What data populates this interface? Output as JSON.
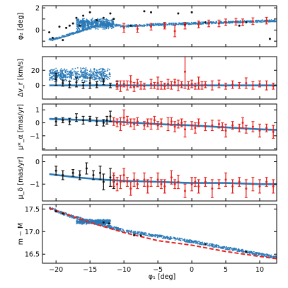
{
  "chart_data": {
    "type": "scatter",
    "x_axis": {
      "label": "φ₁ [deg]",
      "lim": [
        -22,
        12.5
      ],
      "ticks": [
        -20,
        -15,
        -10,
        -5,
        0,
        5,
        10
      ],
      "tick_labels": [
        "−20",
        "−15",
        "−10",
        "−5",
        "0",
        "5",
        "10"
      ]
    },
    "colors": {
      "model": "#2a7ab8",
      "black_members": "#111111",
      "red_members": "#e8211c",
      "dashed_line": "#e8211c"
    },
    "panels": [
      {
        "ylabel": "φ₂ [deg]",
        "ylim": [
          -1.5,
          2.2
        ],
        "yticks": [
          -1,
          0,
          1,
          2
        ],
        "ytick_labels": [
          "",
          "0",
          "",
          "2"
        ],
        "model_band": [
          [
            -20.5,
            -0.85
          ],
          [
            -18,
            -0.4
          ],
          [
            -15,
            0.2
          ],
          [
            -13,
            0.55
          ],
          [
            -10,
            0.35
          ],
          [
            -5,
            0.5
          ],
          [
            0,
            0.6
          ],
          [
            5,
            0.7
          ],
          [
            10,
            0.8
          ],
          [
            12.5,
            0.85
          ]
        ],
        "model_blob": {
          "x_range": [
            -17,
            -11.5
          ],
          "y_center": 0.55,
          "y_half": 0.55
        },
        "black_points": [
          [
            -21,
            -0.2
          ],
          [
            -20.5,
            -0.7
          ],
          [
            -19.5,
            0.3
          ],
          [
            -19,
            -0.9
          ],
          [
            -18.5,
            0.2
          ],
          [
            -18,
            0.4
          ],
          [
            -17.5,
            0.6
          ],
          [
            -17,
            1.1
          ],
          [
            -16.5,
            0.4
          ],
          [
            -16,
            1.3
          ],
          [
            -15,
            1.6
          ],
          [
            -14,
            0.9
          ],
          [
            -13,
            1.1
          ],
          [
            -12,
            1.5
          ],
          [
            -11.5,
            1.0
          ],
          [
            -9,
            0.4
          ],
          [
            -7,
            1.7
          ],
          [
            -6,
            1.6
          ],
          [
            -4,
            0.3
          ],
          [
            -2,
            1.5
          ],
          [
            -1,
            0.5
          ],
          [
            0,
            1.6
          ],
          [
            2,
            0.7
          ],
          [
            4,
            0.6
          ],
          [
            7,
            0.4
          ],
          [
            8,
            0.7
          ],
          [
            11.5,
            -0.8
          ]
        ],
        "red_points": [
          [
            -10,
            0.2,
            0.4
          ],
          [
            -8,
            0.1,
            0.3
          ],
          [
            -6,
            0.3,
            0.3
          ],
          [
            -4,
            0.4,
            0.3
          ],
          [
            -2.5,
            -0.1,
            0.5
          ],
          [
            -1,
            0.4,
            0.3
          ],
          [
            1,
            0.5,
            0.3
          ],
          [
            2.5,
            0.6,
            0.3
          ],
          [
            4,
            0.6,
            0.3
          ],
          [
            5,
            0.7,
            0.3
          ],
          [
            6.5,
            0.75,
            0.3
          ],
          [
            7.5,
            0.7,
            0.3
          ],
          [
            9,
            0.8,
            0.3
          ],
          [
            11,
            0.85,
            0.3
          ]
        ]
      },
      {
        "ylabel": "Δv_r [km/s]",
        "ylim": [
          -18,
          38
        ],
        "yticks": [
          0,
          20
        ],
        "ytick_labels": [
          "0",
          "20"
        ],
        "model_line": [
          [
            -21,
            0
          ],
          [
            -15,
            0
          ],
          [
            -10,
            0
          ],
          [
            0,
            0
          ],
          [
            10,
            0
          ],
          [
            12.5,
            0
          ]
        ],
        "model_blob": {
          "x_range": [
            -21,
            -12
          ],
          "y_center": 14,
          "y_half": 10
        },
        "black_points": [
          [
            -20,
            8,
            8
          ],
          [
            -19,
            3,
            4
          ],
          [
            -18,
            1,
            4
          ],
          [
            -17,
            4,
            6
          ],
          [
            -16,
            0,
            4
          ],
          [
            -15,
            3,
            7
          ],
          [
            -14,
            1,
            4
          ],
          [
            -13,
            5,
            4
          ],
          [
            -12,
            0,
            3
          ],
          [
            -11,
            2,
            4
          ]
        ],
        "red_points": [
          [
            -11,
            0,
            5
          ],
          [
            -10.5,
            -1,
            7
          ],
          [
            -10,
            2,
            4
          ],
          [
            -9.5,
            0,
            6
          ],
          [
            -9,
            5,
            8
          ],
          [
            -8.5,
            -2,
            6
          ],
          [
            -8,
            3,
            5
          ],
          [
            -7.5,
            0,
            5
          ],
          [
            -7,
            -1,
            4
          ],
          [
            -6,
            2,
            6
          ],
          [
            -5.5,
            0,
            4
          ],
          [
            -5,
            3,
            8
          ],
          [
            -4.5,
            0,
            5
          ],
          [
            -4,
            -1,
            4
          ],
          [
            -3.5,
            2,
            6
          ],
          [
            -3,
            0,
            5
          ],
          [
            -2.5,
            4,
            4
          ],
          [
            -2,
            0,
            7
          ],
          [
            -1.5,
            1,
            4
          ],
          [
            -1,
            18,
            22
          ],
          [
            -0.5,
            0,
            5
          ],
          [
            0,
            2,
            5
          ],
          [
            0.5,
            -1,
            4
          ],
          [
            1,
            3,
            8
          ],
          [
            1.5,
            0,
            5
          ],
          [
            2,
            1,
            4
          ],
          [
            3,
            0,
            6
          ],
          [
            4,
            2,
            5
          ],
          [
            5,
            -1,
            4
          ],
          [
            6,
            1,
            5
          ],
          [
            7,
            0,
            4
          ],
          [
            8,
            3,
            7
          ],
          [
            9,
            0,
            5
          ],
          [
            10,
            2,
            4
          ],
          [
            11,
            0,
            6
          ],
          [
            12,
            -1,
            4
          ]
        ]
      },
      {
        "ylabel": "μ*_α [mas/yr]",
        "ylim": [
          -2.1,
          1.45
        ],
        "yticks": [
          -2,
          -1,
          0,
          1
        ],
        "ytick_labels": [
          "",
          "−1",
          "0",
          "1"
        ],
        "model_line": [
          [
            -21,
            0.3
          ],
          [
            -15,
            0.2
          ],
          [
            -10,
            0.05
          ],
          [
            -5,
            -0.1
          ],
          [
            0,
            -0.2
          ],
          [
            5,
            -0.35
          ],
          [
            10,
            -0.5
          ],
          [
            12.5,
            -0.55
          ]
        ],
        "black_points": [
          [
            -20,
            0.1,
            0.3
          ],
          [
            -19,
            0.2,
            0.2
          ],
          [
            -18,
            0.1,
            0.25
          ],
          [
            -17,
            0.4,
            0.3
          ],
          [
            -16,
            0.2,
            0.3
          ],
          [
            -15,
            0.3,
            0.2
          ],
          [
            -14,
            0.1,
            0.3
          ],
          [
            -13,
            0.0,
            0.25
          ],
          [
            -12.5,
            0.2,
            0.3
          ],
          [
            -12,
            0.5,
            0.4
          ]
        ],
        "red_points": [
          [
            -11.5,
            0.1,
            0.3
          ],
          [
            -11,
            0.0,
            0.3
          ],
          [
            -10.5,
            -0.1,
            0.5
          ],
          [
            -10,
            0.4,
            0.6
          ],
          [
            -9.5,
            0.2,
            0.3
          ],
          [
            -9,
            0.0,
            0.3
          ],
          [
            -8.5,
            -0.1,
            0.4
          ],
          [
            -8,
            0.1,
            0.3
          ],
          [
            -7,
            -0.2,
            0.3
          ],
          [
            -6.5,
            0.0,
            0.3
          ],
          [
            -6,
            -0.1,
            0.4
          ],
          [
            -5.5,
            0.2,
            0.3
          ],
          [
            -5,
            -0.2,
            0.3
          ],
          [
            -4.5,
            0.0,
            0.3
          ],
          [
            -3.5,
            -0.1,
            0.5
          ],
          [
            -3,
            0.1,
            0.3
          ],
          [
            -2.5,
            -0.3,
            0.4
          ],
          [
            -2,
            -0.1,
            0.3
          ],
          [
            -1.5,
            0.0,
            0.3
          ],
          [
            -1,
            -0.5,
            0.6
          ],
          [
            0,
            -0.2,
            0.3
          ],
          [
            0.5,
            -0.4,
            0.4
          ],
          [
            1,
            0.0,
            0.3
          ],
          [
            2,
            -0.3,
            0.3
          ],
          [
            3,
            -0.2,
            0.4
          ],
          [
            4,
            -0.1,
            0.3
          ],
          [
            4.5,
            -0.3,
            0.3
          ],
          [
            5,
            -0.6,
            0.5
          ],
          [
            6,
            -0.2,
            0.3
          ],
          [
            7,
            -0.4,
            0.3
          ],
          [
            7.5,
            0.0,
            0.4
          ],
          [
            8,
            -0.5,
            0.3
          ],
          [
            9,
            -0.3,
            0.4
          ],
          [
            10,
            -0.6,
            0.5
          ],
          [
            11,
            -0.4,
            0.3
          ],
          [
            12,
            -0.7,
            0.5
          ]
        ]
      },
      {
        "ylabel": "μ_δ [mas/yr]",
        "ylim": [
          -1.75,
          0.3
        ],
        "yticks": [
          -1,
          0
        ],
        "ytick_labels": [
          "−1",
          "0"
        ],
        "model_line": [
          [
            -21,
            -0.55
          ],
          [
            -17,
            -0.7
          ],
          [
            -13,
            -0.8
          ],
          [
            -10,
            -0.85
          ],
          [
            -5,
            -0.9
          ],
          [
            0,
            -0.95
          ],
          [
            5,
            -0.95
          ],
          [
            10,
            -1.0
          ],
          [
            12.5,
            -1.0
          ]
        ],
        "black_points": [
          [
            -20,
            -0.4,
            0.2
          ],
          [
            -19,
            -0.6,
            0.2
          ],
          [
            -17.5,
            -0.5,
            0.15
          ],
          [
            -16.5,
            -0.6,
            0.2
          ],
          [
            -15.5,
            -0.3,
            0.25
          ],
          [
            -14.5,
            -0.6,
            0.2
          ],
          [
            -13.5,
            -0.5,
            0.3
          ],
          [
            -13,
            -0.9,
            0.35
          ],
          [
            -12,
            -0.7,
            0.4
          ],
          [
            -11.5,
            -0.9,
            0.3
          ]
        ],
        "red_points": [
          [
            -11.5,
            -0.8,
            0.3
          ],
          [
            -11,
            -1.0,
            0.3
          ],
          [
            -10.5,
            -0.9,
            0.3
          ],
          [
            -10,
            -0.6,
            0.3
          ],
          [
            -9.5,
            -0.9,
            0.2
          ],
          [
            -9,
            -1.2,
            0.3
          ],
          [
            -8.5,
            -0.8,
            0.3
          ],
          [
            -8,
            -1.0,
            0.2
          ],
          [
            -7,
            -0.8,
            0.3
          ],
          [
            -6.5,
            -1.1,
            0.3
          ],
          [
            -6,
            -0.9,
            0.2
          ],
          [
            -5,
            -0.8,
            0.3
          ],
          [
            -4.5,
            -1.0,
            0.2
          ],
          [
            -4,
            -1.1,
            0.3
          ],
          [
            -3,
            -0.7,
            0.3
          ],
          [
            -2.5,
            -1.0,
            0.2
          ],
          [
            -2,
            -0.9,
            0.3
          ],
          [
            -1,
            -1.3,
            0.3
          ],
          [
            0,
            -1.0,
            0.3
          ],
          [
            0.5,
            -0.9,
            0.2
          ],
          [
            1,
            -1.1,
            0.3
          ],
          [
            2,
            -0.9,
            0.2
          ],
          [
            3,
            -1.2,
            0.4
          ],
          [
            4,
            -1.0,
            0.2
          ],
          [
            5,
            -0.8,
            0.3
          ],
          [
            6,
            -1.1,
            0.3
          ],
          [
            7,
            -0.9,
            0.2
          ],
          [
            8,
            -1.2,
            0.4
          ],
          [
            9,
            -1.0,
            0.3
          ],
          [
            10,
            -1.1,
            0.3
          ],
          [
            11,
            -0.9,
            0.2
          ],
          [
            12,
            -1.1,
            0.3
          ]
        ]
      },
      {
        "ylabel": "m − M",
        "ylim": [
          16.3,
          17.6
        ],
        "yticks": [
          16.5,
          17.0,
          17.5
        ],
        "ytick_labels": [
          "16.5",
          "17.0",
          "17.5"
        ],
        "model_band": [
          [
            -21,
            17.52
          ],
          [
            -18,
            17.35
          ],
          [
            -15,
            17.22
          ],
          [
            -10,
            17.02
          ],
          [
            -5,
            16.9
          ],
          [
            0,
            16.78
          ],
          [
            5,
            16.64
          ],
          [
            10,
            16.5
          ],
          [
            12.5,
            16.43
          ]
        ],
        "model_blob": {
          "x_range": [
            -17,
            -12
          ],
          "y_center": 17.22,
          "y_half": 0.06
        },
        "dashed_line": [
          [
            -21,
            17.52
          ],
          [
            -15,
            17.2
          ],
          [
            -10,
            16.98
          ],
          [
            -5,
            16.8
          ],
          [
            0,
            16.7
          ],
          [
            5,
            16.56
          ],
          [
            10,
            16.45
          ],
          [
            12.5,
            16.4
          ]
        ],
        "black_points": [
          [
            -20,
            17.45
          ],
          [
            -19,
            17.4
          ],
          [
            -13,
            17.2
          ],
          [
            -12.2,
            17.18
          ],
          [
            -8.5,
            16.92
          ],
          [
            -7.5,
            16.91
          ],
          [
            2,
            16.72
          ],
          [
            8,
            16.55
          ]
        ]
      }
    ]
  }
}
